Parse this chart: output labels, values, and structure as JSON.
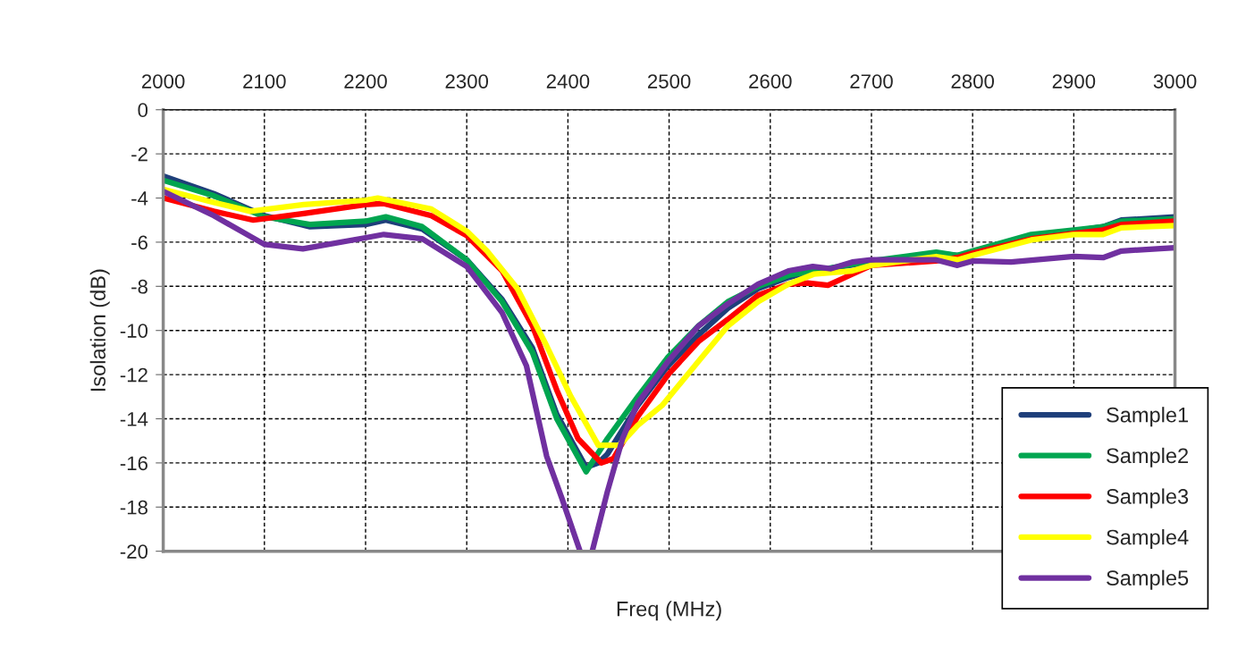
{
  "chart_data": {
    "type": "line",
    "xlabel": "Freq (MHz)",
    "ylabel": "Isolation (dB)",
    "xlim": [
      2000,
      3000
    ],
    "xticks": [
      2000,
      2100,
      2200,
      2300,
      2400,
      2500,
      2600,
      2700,
      2800,
      2900,
      3000
    ],
    "ylim": [
      -20,
      0
    ],
    "yticks": [
      -20,
      -18,
      -16,
      -14,
      -12,
      -10,
      -8,
      -6,
      -4,
      -2,
      0
    ],
    "grid": true,
    "legend": "bottom right",
    "marker": "none",
    "line_style": "solid",
    "series": [
      {
        "name": "Sample1",
        "color": "#1f3f7a",
        "x": [
          2000,
          2050,
          2100,
          2145,
          2200,
          2220,
          2256,
          2300,
          2335,
          2365,
          2389,
          2418,
          2430,
          2439,
          2469,
          2499,
          2529,
          2558,
          2588,
          2618,
          2643,
          2700,
          2764,
          2785,
          2800,
          2858,
          2900,
          2929,
          2947,
          3000
        ],
        "values": [
          -3.0,
          -3.8,
          -4.8,
          -5.3,
          -5.2,
          -5.0,
          -5.4,
          -6.8,
          -8.6,
          -10.8,
          -13.8,
          -16.2,
          -16.0,
          -15.6,
          -13.4,
          -11.6,
          -10.2,
          -9.0,
          -8.1,
          -7.6,
          -7.3,
          -6.9,
          -6.5,
          -6.6,
          -6.5,
          -5.7,
          -5.5,
          -5.3,
          -5.0,
          -4.85
        ]
      },
      {
        "name": "Sample2",
        "color": "#00a550",
        "x": [
          2000,
          2050,
          2100,
          2145,
          2200,
          2220,
          2256,
          2300,
          2335,
          2365,
          2389,
          2418,
          2439,
          2469,
          2499,
          2529,
          2558,
          2588,
          2618,
          2643,
          2700,
          2764,
          2785,
          2800,
          2858,
          2900,
          2929,
          2947,
          3000
        ],
        "values": [
          -3.2,
          -3.9,
          -4.85,
          -5.2,
          -5.05,
          -4.85,
          -5.3,
          -6.8,
          -8.7,
          -11.0,
          -14.0,
          -16.4,
          -14.9,
          -13.0,
          -11.2,
          -9.8,
          -8.7,
          -8.0,
          -7.5,
          -7.3,
          -6.85,
          -6.45,
          -6.6,
          -6.4,
          -5.65,
          -5.45,
          -5.3,
          -5.05,
          -4.95
        ]
      },
      {
        "name": "Sample3",
        "color": "#ff0000",
        "x": [
          2000,
          2050,
          2089,
          2139,
          2200,
          2218,
          2265,
          2300,
          2335,
          2365,
          2389,
          2410,
          2433,
          2445,
          2469,
          2499,
          2529,
          2558,
          2588,
          2618,
          2637,
          2657,
          2681,
          2700,
          2764,
          2785,
          2800,
          2858,
          2900,
          2929,
          2947,
          3000
        ],
        "values": [
          -4.0,
          -4.6,
          -5.0,
          -4.7,
          -4.3,
          -4.25,
          -4.8,
          -5.7,
          -7.3,
          -9.8,
          -12.7,
          -14.9,
          -16.0,
          -15.8,
          -13.9,
          -12.0,
          -10.5,
          -9.5,
          -8.4,
          -7.9,
          -7.85,
          -7.95,
          -7.45,
          -7.05,
          -6.85,
          -6.7,
          -6.5,
          -5.85,
          -5.6,
          -5.45,
          -5.2,
          -5.05
        ]
      },
      {
        "name": "Sample4",
        "color": "#ffff00",
        "x": [
          2000,
          2050,
          2086,
          2139,
          2200,
          2212,
          2265,
          2300,
          2320,
          2350,
          2379,
          2403,
          2430,
          2451,
          2469,
          2493,
          2529,
          2558,
          2588,
          2618,
          2643,
          2681,
          2700,
          2764,
          2785,
          2800,
          2858,
          2900,
          2929,
          2947,
          3000
        ],
        "values": [
          -3.6,
          -4.2,
          -4.6,
          -4.3,
          -4.1,
          -4.0,
          -4.5,
          -5.5,
          -6.4,
          -8.1,
          -10.7,
          -13.0,
          -15.2,
          -15.2,
          -14.3,
          -13.4,
          -11.4,
          -9.8,
          -8.7,
          -7.9,
          -7.45,
          -7.3,
          -7.05,
          -6.65,
          -6.8,
          -6.6,
          -5.9,
          -5.65,
          -5.65,
          -5.35,
          -5.25
        ]
      },
      {
        "name": "Sample5",
        "color": "#7030a0",
        "x": [
          2000,
          2050,
          2100,
          2138,
          2200,
          2218,
          2256,
          2300,
          2335,
          2359,
          2379,
          2394,
          2412,
          2418,
          2424,
          2439,
          2454,
          2469,
          2499,
          2529,
          2558,
          2588,
          2618,
          2642,
          2660,
          2681,
          2700,
          2764,
          2785,
          2800,
          2838,
          2900,
          2929,
          2947,
          3000
        ],
        "values": [
          -3.7,
          -4.8,
          -6.1,
          -6.3,
          -5.8,
          -5.65,
          -5.85,
          -7.1,
          -9.2,
          -11.6,
          -15.7,
          -17.6,
          -20.0,
          null,
          -20.0,
          -17.3,
          -14.9,
          -13.3,
          -11.4,
          -9.8,
          -8.8,
          -7.9,
          -7.3,
          -7.1,
          -7.2,
          -6.9,
          -6.8,
          -6.8,
          -7.05,
          -6.85,
          -6.9,
          -6.65,
          -6.7,
          -6.4,
          -6.25
        ]
      }
    ]
  }
}
